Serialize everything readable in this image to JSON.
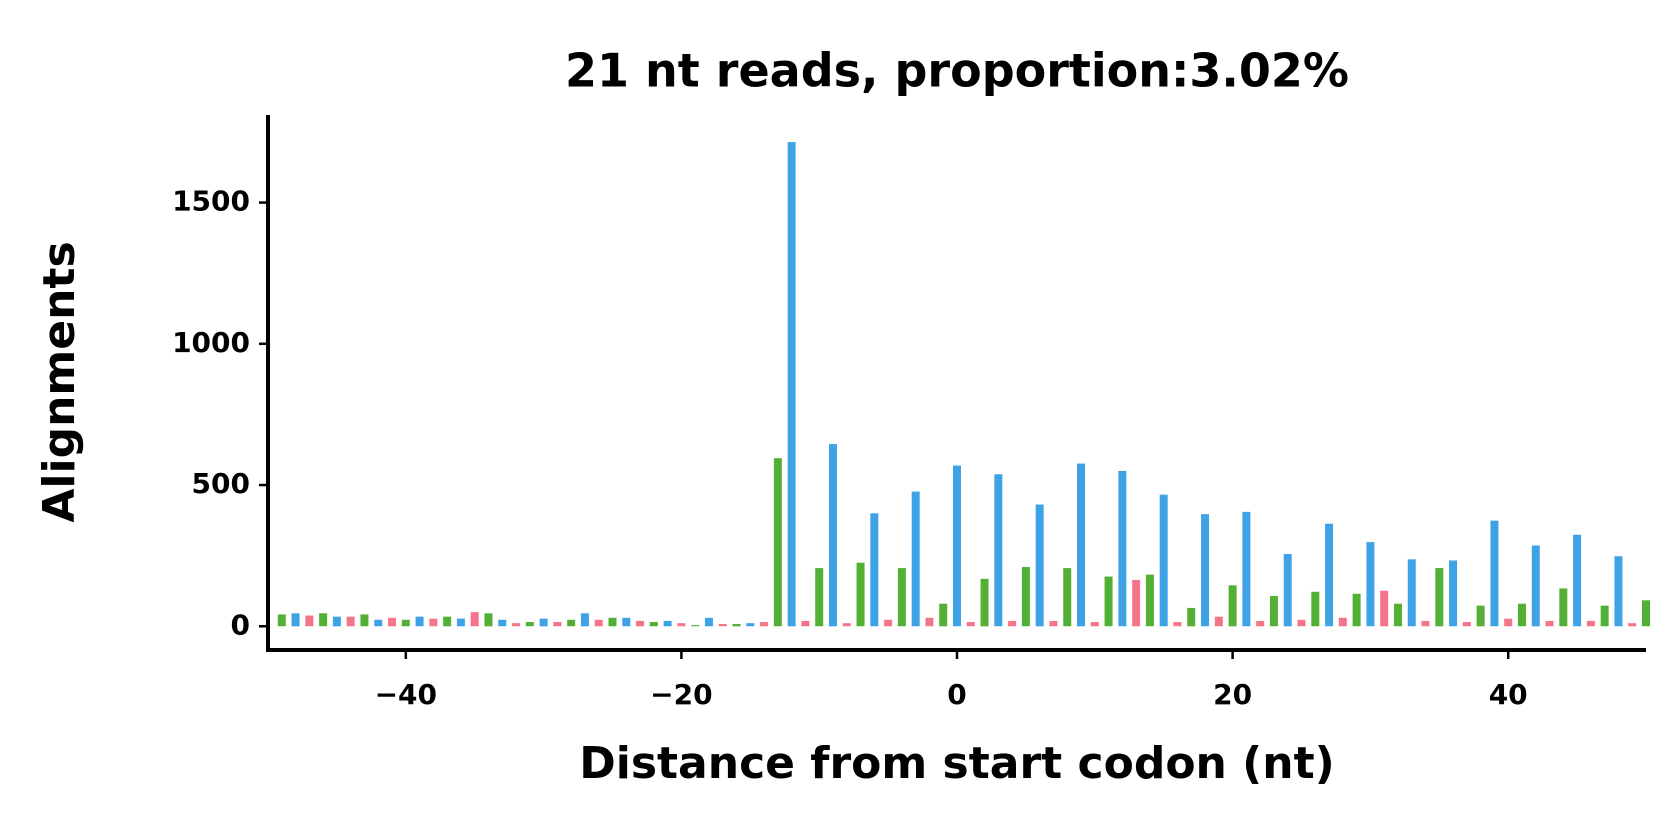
{
  "chart_data": {
    "type": "bar",
    "title": "21 nt reads, proportion:3.02%",
    "x_label": "Distance from start codon (nt)",
    "y_label": "Alignments",
    "xlim": [
      -50,
      50
    ],
    "ylim": [
      -84,
      1810
    ],
    "xticks": [
      {
        "value": -40,
        "label": "−40"
      },
      {
        "value": -20,
        "label": "−20"
      },
      0,
      20,
      40
    ],
    "yticks": [
      0,
      500,
      1000,
      1500
    ],
    "series": [
      {
        "color": "#52b035",
        "x": [
          -49,
          -46,
          -43,
          -40,
          -37,
          -34,
          -31,
          -28,
          -25,
          -22,
          -19,
          -16,
          -13,
          -10,
          -7,
          -4,
          -1,
          2,
          5,
          8,
          11,
          14,
          17,
          20,
          23,
          26,
          29,
          32,
          35,
          38,
          41,
          44,
          47,
          50
        ],
        "values": [
          42,
          46,
          42,
          23,
          34,
          46,
          15,
          23,
          30,
          15,
          4,
          8,
          595,
          206,
          225,
          206,
          80,
          168,
          210,
          206,
          176,
          183,
          65,
          145,
          107,
          122,
          115,
          80,
          206,
          73,
          80,
          134,
          73,
          92
        ]
      },
      {
        "color": "#3ea3e6",
        "x": [
          -48,
          -45,
          -42,
          -39,
          -36,
          -33,
          -30,
          -27,
          -24,
          -21,
          -18,
          -15,
          -12,
          -9,
          -6,
          -3,
          0,
          3,
          6,
          9,
          12,
          15,
          18,
          21,
          24,
          27,
          30,
          33,
          36,
          39,
          42,
          45,
          48
        ],
        "values": [
          46,
          34,
          23,
          34,
          27,
          23,
          27,
          46,
          30,
          19,
          30,
          11,
          1714,
          645,
          400,
          477,
          569,
          538,
          431,
          576,
          550,
          466,
          397,
          405,
          256,
          363,
          298,
          237,
          233,
          374,
          286,
          324,
          248
        ]
      },
      {
        "color": "#f4758b",
        "x": [
          -47,
          -44,
          -41,
          -38,
          -35,
          -32,
          -29,
          -26,
          -23,
          -20,
          -17,
          -14,
          -11,
          -8,
          -5,
          -2,
          1,
          4,
          7,
          10,
          13,
          16,
          19,
          22,
          25,
          28,
          31,
          34,
          37,
          40,
          43,
          46,
          49
        ],
        "values": [
          38,
          34,
          30,
          27,
          50,
          11,
          15,
          23,
          19,
          11,
          8,
          15,
          19,
          11,
          23,
          30,
          15,
          19,
          19,
          15,
          164,
          15,
          34,
          19,
          23,
          30,
          126,
          19,
          15,
          27,
          19,
          19,
          11
        ]
      }
    ]
  }
}
